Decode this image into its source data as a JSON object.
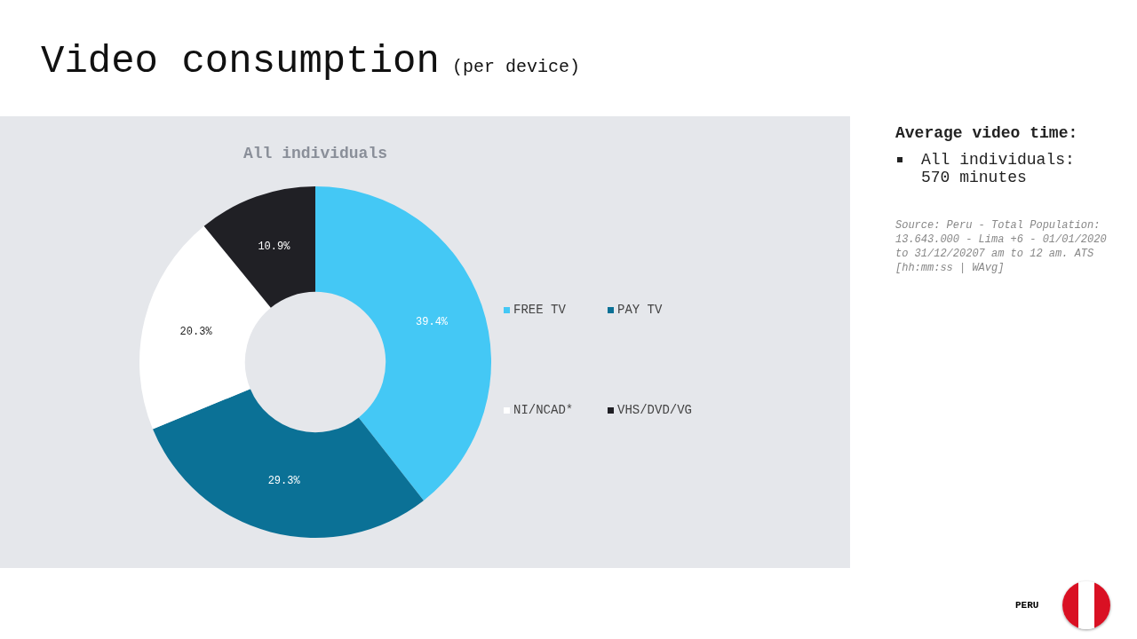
{
  "chart_data": {
    "type": "donut",
    "title": "Video consumption",
    "subtitle": "(per device)",
    "categories": [
      "FREE TV",
      "PAY TV",
      "NI/NCAD*",
      "VHS/DVD/VG"
    ],
    "values": [
      39.4,
      29.3,
      20.3,
      10.9
    ],
    "colors": [
      "#44c8f5",
      "#0b7196",
      "#ffffff",
      "#202025"
    ],
    "value_labels": [
      "39.4%",
      "29.3%",
      "20.3%",
      "10.9%"
    ],
    "legend": "right",
    "annotations": [
      "All individuals",
      "Average video time:",
      "All individuals: 570 minutes",
      "Source: Peru - Total Population: 13.643.000 - Lima +6 - 01/01/2020 to 31/12/20207 am to 12 am. ATS [hh:mm:ss | WAvg]",
      "PERU"
    ]
  }
}
